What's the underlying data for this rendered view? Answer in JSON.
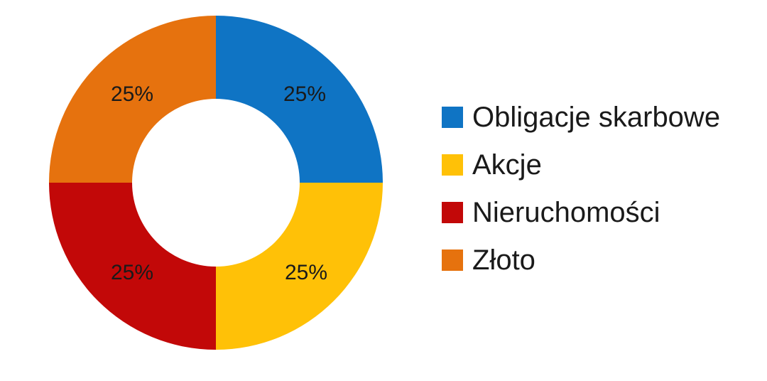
{
  "chart_data": {
    "type": "pie",
    "subtype": "donut",
    "title": "",
    "slices": [
      {
        "label": "Obligacje skarbowe",
        "value": 25,
        "pct_label": "25%",
        "color": "#0F74C4"
      },
      {
        "label": "Akcje",
        "value": 25,
        "pct_label": "25%",
        "color": "#FFC107"
      },
      {
        "label": "Nieruchomości",
        "value": 25,
        "pct_label": "25%",
        "color": "#C20808"
      },
      {
        "label": "Złoto",
        "value": 25,
        "pct_label": "25%",
        "color": "#E6720E"
      }
    ],
    "start_angle_deg": 0,
    "direction": "clockwise",
    "inner_radius_ratio": 0.5,
    "data_label_format": "percent",
    "data_label_color": "#1A1A1A",
    "legend_position": "right",
    "background": "#FFFFFF"
  }
}
